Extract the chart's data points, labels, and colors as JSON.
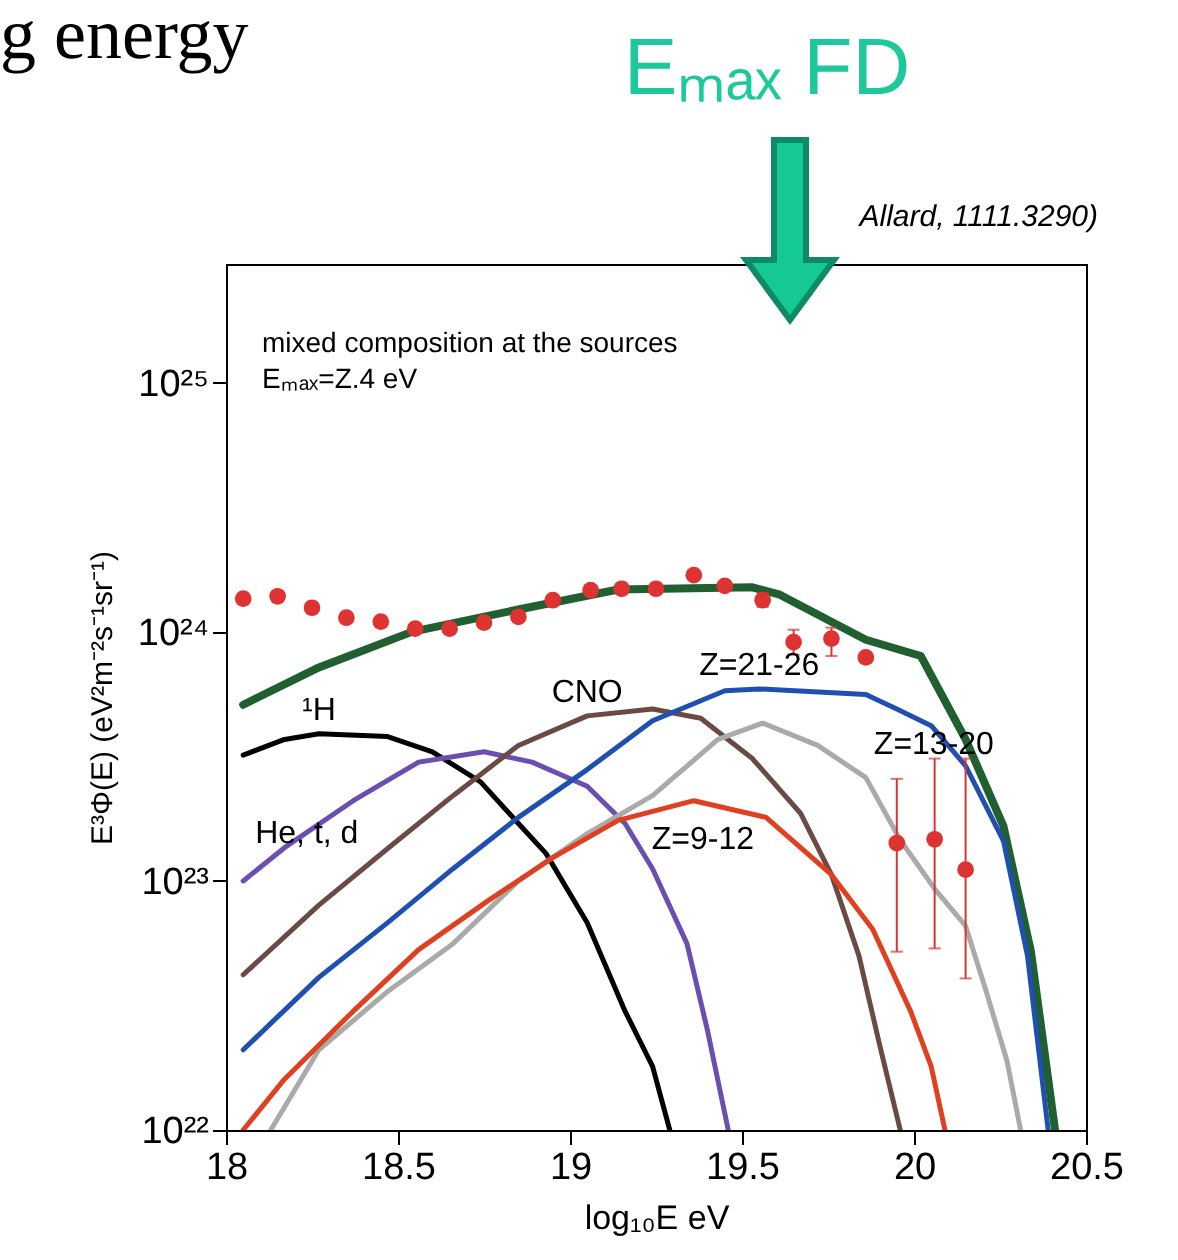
{
  "chart_data": {
    "type": "line",
    "title": "g energy",
    "xlabel": "log₁₀E eV",
    "ylabel": "E³Φ(E) (eV²m⁻²s⁻¹sr⁻¹)",
    "log": "y",
    "xlim": [
      18,
      20.5
    ],
    "xticks": [
      18,
      18.5,
      19,
      19.5,
      20,
      20.5
    ],
    "ylim": [
      1e+22,
      3e+25
    ],
    "yticks": [
      {
        "value": 1e+22,
        "label": "10²²"
      },
      {
        "value": 1e+23,
        "label": "10²³"
      },
      {
        "value": 1e+24,
        "label": "10²⁴"
      },
      {
        "value": 1e+25,
        "label": "10²⁵"
      }
    ],
    "line_style": "solid",
    "marker": "none",
    "grid": false,
    "annotations": [
      "mixed composition at the sources",
      "Eₘₐₓ=Z.4 eV",
      "Allard, 1111.3290)",
      "Eₘₐₓ FD"
    ],
    "series": [
      {
        "color": "#1f5f30",
        "x": [
          18.05,
          18.27,
          18.54,
          18.85,
          19.14,
          19.53,
          19.61,
          19.86,
          20.02,
          20.15,
          20.26,
          20.34,
          20.41
        ],
        "values": [
          5.1e+23,
          7.2e+23,
          1e+24,
          1.23e+24,
          1.48e+24,
          1.51e+24,
          1.41e+24,
          9.3e+23,
          8e+23,
          3.7e+23,
          1.66e+23,
          5.2e+22,
          1e+22
        ]
      },
      {
        "name": "¹H",
        "color": "#000000",
        "x": [
          18.05,
          18.17,
          18.27,
          18.47,
          18.6,
          18.74,
          18.85,
          18.93,
          19.05,
          19.16,
          19.24,
          19.29
        ],
        "values": [
          3.2e+23,
          3.7e+23,
          3.9e+23,
          3.8e+23,
          3.3e+23,
          2.5e+23,
          1.7e+23,
          1.29e+23,
          6.8e+22,
          3e+22,
          1.8e+22,
          1e+22
        ]
      },
      {
        "name": "He, t, d",
        "color": "#6a4fb0",
        "x": [
          18.05,
          18.17,
          18.37,
          18.56,
          18.75,
          18.89,
          19.05,
          19.16,
          19.24,
          19.34,
          19.4,
          19.46
        ],
        "values": [
          1e+23,
          1.36e+23,
          2.1e+23,
          3e+23,
          3.3e+23,
          3e+23,
          2.4e+23,
          1.7e+23,
          1.12e+23,
          5.6e+22,
          2.5e+22,
          1e+22
        ]
      },
      {
        "name": "CNO",
        "color": "#6b4a44",
        "x": [
          18.05,
          18.27,
          18.47,
          18.66,
          18.85,
          19.05,
          19.24,
          19.38,
          19.53,
          19.67,
          19.76,
          19.84,
          19.9,
          19.96
        ],
        "values": [
          4.2e+22,
          8e+22,
          1.35e+23,
          2.2e+23,
          3.5e+23,
          4.6e+23,
          4.9e+23,
          4.5e+23,
          3.1e+23,
          1.87e+23,
          1.06e+23,
          5e+22,
          2.2e+22,
          1e+22
        ]
      },
      {
        "name": "Z=21-26",
        "color": "#1f4fb0",
        "x": [
          18.05,
          18.27,
          18.47,
          18.66,
          18.85,
          19.05,
          19.24,
          19.45,
          19.55,
          19.86,
          19.95,
          20.05,
          20.15,
          20.26,
          20.33,
          20.39
        ],
        "values": [
          2.1e+22,
          4.1e+22,
          6.8e+22,
          1.12e+23,
          1.8e+23,
          2.8e+23,
          4.4e+23,
          5.8e+23,
          5.9e+23,
          5.6e+23,
          4.9e+23,
          4.2e+23,
          2.9e+23,
          1.45e+23,
          5e+22,
          1e+22
        ]
      },
      {
        "name": "Z=13-20",
        "color": "#aaaaaa",
        "x": [
          18.13,
          18.27,
          18.47,
          18.66,
          18.85,
          19.05,
          19.24,
          19.43,
          19.56,
          19.72,
          19.86,
          19.96,
          20.06,
          20.15,
          20.21,
          20.27,
          20.31
        ],
        "values": [
          1e+22,
          2.1e+22,
          3.6e+22,
          5.6e+22,
          1e+23,
          1.55e+23,
          2.2e+23,
          3.7e+23,
          4.3e+23,
          3.5e+23,
          2.6e+23,
          1.46e+23,
          9.3e+22,
          6.6e+22,
          3.6e+22,
          1.9e+22,
          1e+22
        ]
      },
      {
        "name": "Z=9-12",
        "color": "#e04020",
        "x": [
          18.05,
          18.17,
          18.37,
          18.56,
          18.76,
          18.95,
          19.14,
          19.36,
          19.57,
          19.76,
          19.88,
          19.99,
          20.05,
          20.09
        ],
        "values": [
          1e+22,
          1.6e+22,
          3e+22,
          5.3e+22,
          8.3e+22,
          1.24e+23,
          1.75e+23,
          2.1e+23,
          1.8e+23,
          1.06e+23,
          6.4e+22,
          3e+22,
          1.8e+22,
          1e+22
        ]
      },
      {
        "type": "scatter",
        "marker": "circle",
        "color": "#dd3333",
        "x": [
          18.05,
          18.15,
          18.25,
          18.35,
          18.45,
          18.55,
          18.65,
          18.75,
          18.85,
          18.95,
          19.06,
          19.15,
          19.25,
          19.36,
          19.45,
          19.56,
          19.65,
          19.76,
          19.86,
          19.95,
          20.06,
          20.15
        ],
        "values": [
          1.36e+24,
          1.39e+24,
          1.25e+24,
          1.14e+24,
          1.1e+24,
          1.03e+24,
          1.03e+24,
          1.09e+24,
          1.15e+24,
          1.34e+24,
          1.47e+24,
          1.49e+24,
          1.49e+24,
          1.69e+24,
          1.53e+24,
          1.34e+24,
          9.1e+23,
          9.4e+23,
          7.9e+23,
          1.42e+23,
          1.47e+23,
          1.11e+23
        ],
        "errors": [
          null,
          null,
          null,
          null,
          null,
          null,
          null,
          null,
          null,
          null,
          null,
          null,
          null,
          null,
          null,
          [
            1.26e+24,
            1.43e+24
          ],
          [
            8.1e+23,
            1.02e+24
          ],
          [
            8e+23,
            1.04e+24
          ],
          null,
          [
            5.2e+22,
            2.57e+23
          ],
          [
            5.36e+22,
            3.1e+23
          ],
          [
            4.06e+22,
            3.1e+23
          ]
        ]
      }
    ]
  }
}
